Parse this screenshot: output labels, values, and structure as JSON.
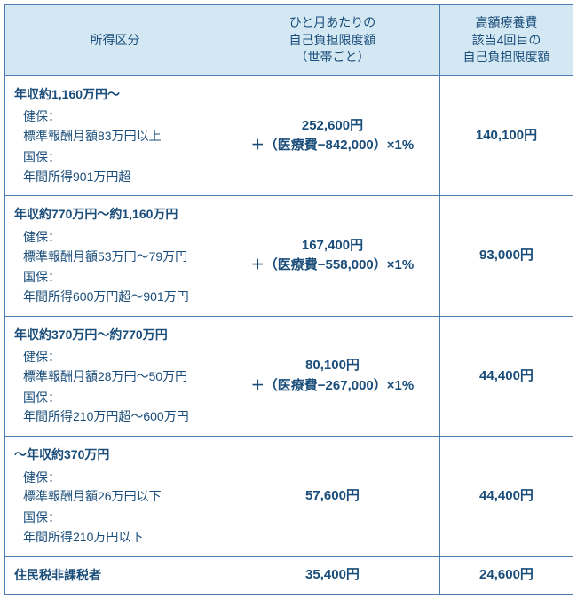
{
  "colors": {
    "border": "#4a7cb0",
    "header_bg": "#d4e8f4",
    "text": "#1a4d7a",
    "background": "#ffffff"
  },
  "columns": {
    "cat_header": "所得区分",
    "mid_header_l1": "ひと月あたりの",
    "mid_header_l2": "自己負担限度額",
    "mid_header_l3": "（世帯ごと）",
    "right_header_l1": "高額療養費",
    "right_header_l2": "該当4回目の",
    "right_header_l3": "自己負担限度額"
  },
  "rows": [
    {
      "title": "年収約1,160万円〜",
      "kenpo_label": "健保：",
      "kenpo_text": "標準報酬月額83万円以上",
      "kokuho_label": "国保：",
      "kokuho_text": "年間所得901万円超",
      "mid_l1": "252,600円",
      "mid_l2": "＋（医療費−842,000）×1%",
      "right": "140,100円"
    },
    {
      "title": "年収約770万円〜約1,160万円",
      "kenpo_label": "健保：",
      "kenpo_text": "標準報酬月額53万円〜79万円",
      "kokuho_label": "国保：",
      "kokuho_text": "年間所得600万円超〜901万円",
      "mid_l1": "167,400円",
      "mid_l2": "＋（医療費−558,000）×1%",
      "right": "93,000円"
    },
    {
      "title": "年収約370万円〜約770万円",
      "kenpo_label": "健保：",
      "kenpo_text": "標準報酬月額28万円〜50万円",
      "kokuho_label": "国保：",
      "kokuho_text": "年間所得210万円超〜600万円",
      "mid_l1": "80,100円",
      "mid_l2": "＋（医療費−267,000）×1%",
      "right": "44,400円"
    },
    {
      "title": "〜年収約370万円",
      "kenpo_label": "健保：",
      "kenpo_text": "標準報酬月額26万円以下",
      "kokuho_label": "国保：",
      "kokuho_text": "年間所得210万円以下",
      "mid_l1": "57,600円",
      "mid_l2": "",
      "right": "44,400円"
    }
  ],
  "last_row": {
    "title": "住民税非課税者",
    "mid": "35,400円",
    "right": "24,600円"
  }
}
